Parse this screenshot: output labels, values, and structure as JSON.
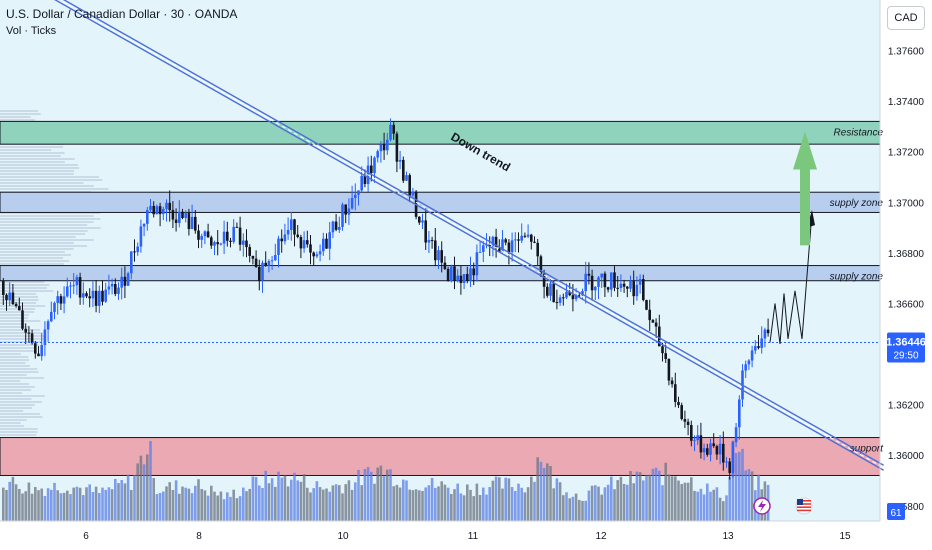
{
  "header": {
    "symbol_line": "U.S. Dollar / Canadian Dollar · 30 · OANDA",
    "volume_line": "Vol · Ticks"
  },
  "currency_badge": "CAD",
  "price_tag": {
    "price": "1.36446",
    "countdown": "29:50"
  },
  "volume_badge": "61",
  "colors": {
    "bull": "#2962ff",
    "bear": "#131722",
    "plot_bg": "#e3f4fb",
    "resistance": "#8fd3bd",
    "supply": "#b7ceef",
    "support": "#eba9b3",
    "trendline": "#4c6fd6",
    "arrow": "#7ac77d"
  },
  "chart_data": {
    "type": "candlestick",
    "x_ticks": [
      "6",
      "8",
      "10",
      "11",
      "12",
      "13",
      "15"
    ],
    "y_ticks": [
      "1.37600",
      "1.37400",
      "1.37200",
      "1.37000",
      "1.36800",
      "1.36600",
      "1.36200",
      "1.36000",
      "1.35800"
    ],
    "y_range": [
      1.3574,
      1.378
    ],
    "last_price": 1.36446,
    "zones": [
      {
        "label": "Resistance",
        "from": 1.3723,
        "to": 1.3732,
        "color": "resistance"
      },
      {
        "label": "supply zone",
        "from": 1.3696,
        "to": 1.3704,
        "color": "supply"
      },
      {
        "label": "supply zone",
        "from": 1.3669,
        "to": 1.3675,
        "color": "supply"
      },
      {
        "label": "support",
        "from": 1.3592,
        "to": 1.3607,
        "color": "support"
      }
    ],
    "trendline": {
      "label": "Down trend",
      "from": {
        "bar": 0,
        "price": 1.3793
      },
      "to": {
        "bar": 238,
        "price": 1.3622
      }
    },
    "price_path": [
      [
        0,
        1.3669
      ],
      [
        8,
        1.365
      ],
      [
        12,
        1.3641
      ],
      [
        16,
        1.366
      ],
      [
        24,
        1.3667
      ],
      [
        30,
        1.3662
      ],
      [
        38,
        1.3667
      ],
      [
        46,
        1.3697
      ],
      [
        52,
        1.3698
      ],
      [
        60,
        1.3691
      ],
      [
        66,
        1.3682
      ],
      [
        74,
        1.3688
      ],
      [
        80,
        1.3671
      ],
      [
        86,
        1.3683
      ],
      [
        92,
        1.3691
      ],
      [
        98,
        1.3675
      ],
      [
        104,
        1.369
      ],
      [
        112,
        1.3705
      ],
      [
        118,
        1.3718
      ],
      [
        122,
        1.3728
      ],
      [
        128,
        1.3704
      ],
      [
        134,
        1.3683
      ],
      [
        140,
        1.3672
      ],
      [
        146,
        1.367
      ],
      [
        152,
        1.3683
      ],
      [
        158,
        1.3683
      ],
      [
        166,
        1.3686
      ],
      [
        170,
        1.3666
      ],
      [
        176,
        1.3663
      ],
      [
        184,
        1.3669
      ],
      [
        192,
        1.3669
      ],
      [
        200,
        1.3666
      ],
      [
        204,
        1.365
      ],
      [
        208,
        1.3638
      ],
      [
        212,
        1.3618
      ],
      [
        218,
        1.3604
      ],
      [
        224,
        1.3603
      ],
      [
        228,
        1.3596
      ],
      [
        232,
        1.363
      ],
      [
        236,
        1.3645
      ],
      [
        240,
        1.3646
      ]
    ],
    "volume_path": [
      [
        0,
        0.5
      ],
      [
        10,
        0.4
      ],
      [
        20,
        0.45
      ],
      [
        30,
        0.35
      ],
      [
        40,
        0.5
      ],
      [
        46,
        1.0
      ],
      [
        48,
        0.4
      ],
      [
        60,
        0.45
      ],
      [
        70,
        0.3
      ],
      [
        80,
        0.5
      ],
      [
        90,
        0.55
      ],
      [
        100,
        0.4
      ],
      [
        110,
        0.5
      ],
      [
        118,
        0.65
      ],
      [
        126,
        0.5
      ],
      [
        134,
        0.45
      ],
      [
        144,
        0.4
      ],
      [
        154,
        0.45
      ],
      [
        164,
        0.45
      ],
      [
        168,
        0.85
      ],
      [
        172,
        0.5
      ],
      [
        180,
        0.3
      ],
      [
        190,
        0.45
      ],
      [
        200,
        0.55
      ],
      [
        210,
        0.6
      ],
      [
        220,
        0.4
      ],
      [
        226,
        0.3
      ],
      [
        228,
        1.0
      ],
      [
        234,
        0.5
      ],
      [
        240,
        0.4
      ]
    ]
  }
}
